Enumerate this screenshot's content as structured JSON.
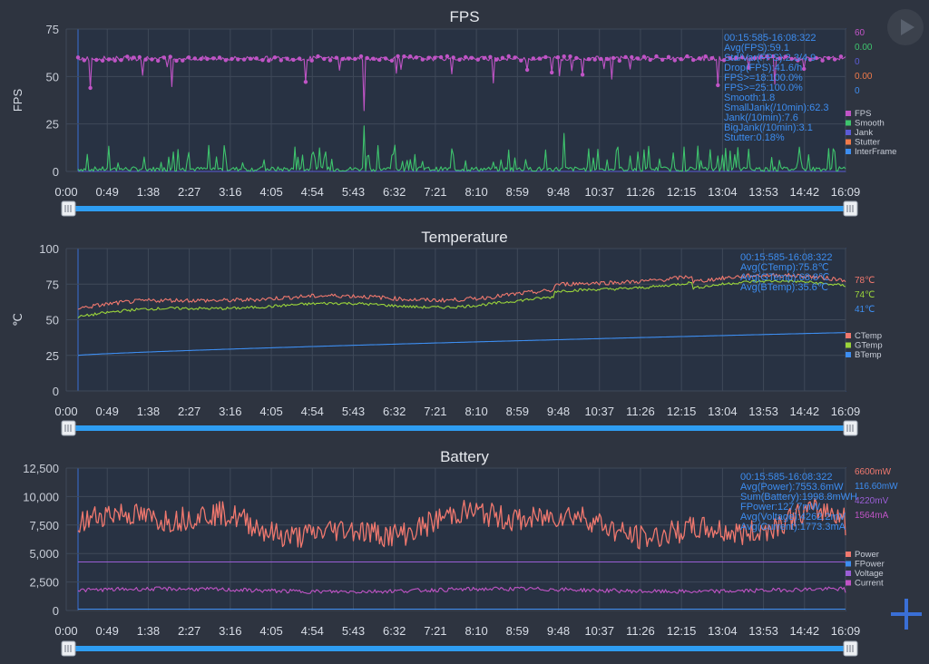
{
  "time_ticks": [
    "0:00",
    "0:49",
    "1:38",
    "2:27",
    "3:16",
    "4:05",
    "4:54",
    "5:43",
    "6:32",
    "7:21",
    "8:10",
    "8:59",
    "9:48",
    "10:37",
    "11:26",
    "12:15",
    "13:04",
    "13:53",
    "14:42",
    "16:09"
  ],
  "colors": {
    "background": "#2e3440",
    "plot_fill": "#283243",
    "plot_border": "#3a70d6",
    "grid": "#3f4959",
    "slider": "#2e9df2",
    "stats_text": "#3d8df0"
  },
  "icons": {
    "play": "play-icon",
    "add": "plus-icon",
    "handle": "slider-handle-icon"
  },
  "chart_data": [
    {
      "type": "line",
      "title": "FPS",
      "ylabel": "FPS",
      "ylim": [
        0,
        75
      ],
      "yticks": [
        "0",
        "25",
        "50",
        "75"
      ],
      "xlabel": "",
      "grid": true,
      "legend_position": "right",
      "stats": [
        "00:15:585-16:08:322",
        "Avg(FPS):59.1",
        "Std/Var(FPS):2.3/4.9",
        "Drop(FPS):41.6/h",
        "FPS>=18:100.0%",
        "FPS>=25:100.0%",
        "Smooth:1.8",
        "SmallJank(/10min):62.3",
        "Jank(/10min):7.6",
        "BigJank(/10min):3.1",
        "Stutter:0.18%"
      ],
      "current_values": [
        {
          "text": "60",
          "color": "#c054c6"
        },
        {
          "text": "0.00",
          "color": "#3ec46d"
        },
        {
          "text": "0",
          "color": "#5b5bd6"
        },
        {
          "text": "0.00",
          "color": "#f07a4a"
        },
        {
          "text": "0",
          "color": "#3d8df0"
        }
      ],
      "series": [
        {
          "name": "FPS",
          "color": "#c054c6",
          "style": "fps",
          "base": 59.5,
          "noise": 1.2,
          "end": null
        },
        {
          "name": "Smooth",
          "color": "#3ec46d",
          "style": "spiky",
          "base": 2,
          "noise": 2.5,
          "end": null
        },
        {
          "name": "Jank",
          "color": "#5b5bd6",
          "style": "zero",
          "base": 0,
          "noise": 0,
          "end": null
        },
        {
          "name": "Stutter",
          "color": "#f07a4a",
          "style": "zero",
          "base": 0,
          "noise": 0,
          "end": null
        },
        {
          "name": "InterFrame",
          "color": "#3d8df0",
          "style": "zero",
          "base": 0,
          "noise": 0,
          "end": null
        }
      ]
    },
    {
      "type": "line",
      "title": "Temperature",
      "ylabel": "℃",
      "ylim": [
        0,
        100
      ],
      "yticks": [
        "0",
        "25",
        "50",
        "75",
        "100"
      ],
      "xlabel": "",
      "grid": true,
      "legend_position": "right",
      "stats": [
        "00:15:585-16:08:322",
        "Avg(CTemp):75.8℃",
        "Avg(GTemp):68.8℃",
        "Avg(BTemp):35.6℃"
      ],
      "current_values": [
        {
          "text": "78℃",
          "color": "#f0786e"
        },
        {
          "text": "74℃",
          "color": "#9ad43a"
        },
        {
          "text": "41℃",
          "color": "#3d8df0"
        }
      ],
      "series": [
        {
          "name": "CTemp",
          "color": "#f0786e",
          "style": "temp",
          "start": 58,
          "end": 78,
          "noise": 1.5
        },
        {
          "name": "GTemp",
          "color": "#9ad43a",
          "style": "temp",
          "start": 52,
          "end": 74,
          "noise": 1.0
        },
        {
          "name": "BTemp",
          "color": "#3d8df0",
          "style": "ramp",
          "start": 25,
          "end": 41,
          "noise": 0
        }
      ]
    },
    {
      "type": "line",
      "title": "Battery",
      "ylabel": "",
      "ylim": [
        0,
        12500
      ],
      "yticks": [
        "0",
        "2,500",
        "5,000",
        "7,500",
        "10,000",
        "12,500"
      ],
      "xlabel": "",
      "grid": true,
      "legend_position": "right",
      "stats": [
        "00:15:585-16:08:322",
        "Avg(Power):7553.6mW",
        "Sum(Battery):1998.8mWH",
        "FPower:127.7mW",
        "Avg(Voltage):4262.2mV",
        "Avg(Current):1773.3mA"
      ],
      "current_values": [
        {
          "text": "6600mW",
          "color": "#f0786e"
        },
        {
          "text": "116.60mW",
          "color": "#3d8df0"
        },
        {
          "text": "4220mV",
          "color": "#9a5ed6"
        },
        {
          "text": "1564mA",
          "color": "#c054c6"
        }
      ],
      "series": [
        {
          "name": "Power",
          "color": "#f0786e",
          "style": "power",
          "base": 7550,
          "noise": 900,
          "end": 6600
        },
        {
          "name": "FPower",
          "color": "#3d8df0",
          "style": "flat",
          "base": 120,
          "noise": 0,
          "end": 117
        },
        {
          "name": "Voltage",
          "color": "#9a5ed6",
          "style": "flat",
          "base": 4262,
          "noise": 0,
          "end": 4220
        },
        {
          "name": "Current",
          "color": "#c054c6",
          "style": "current",
          "base": 1773,
          "noise": 180,
          "end": 1564
        }
      ]
    }
  ]
}
